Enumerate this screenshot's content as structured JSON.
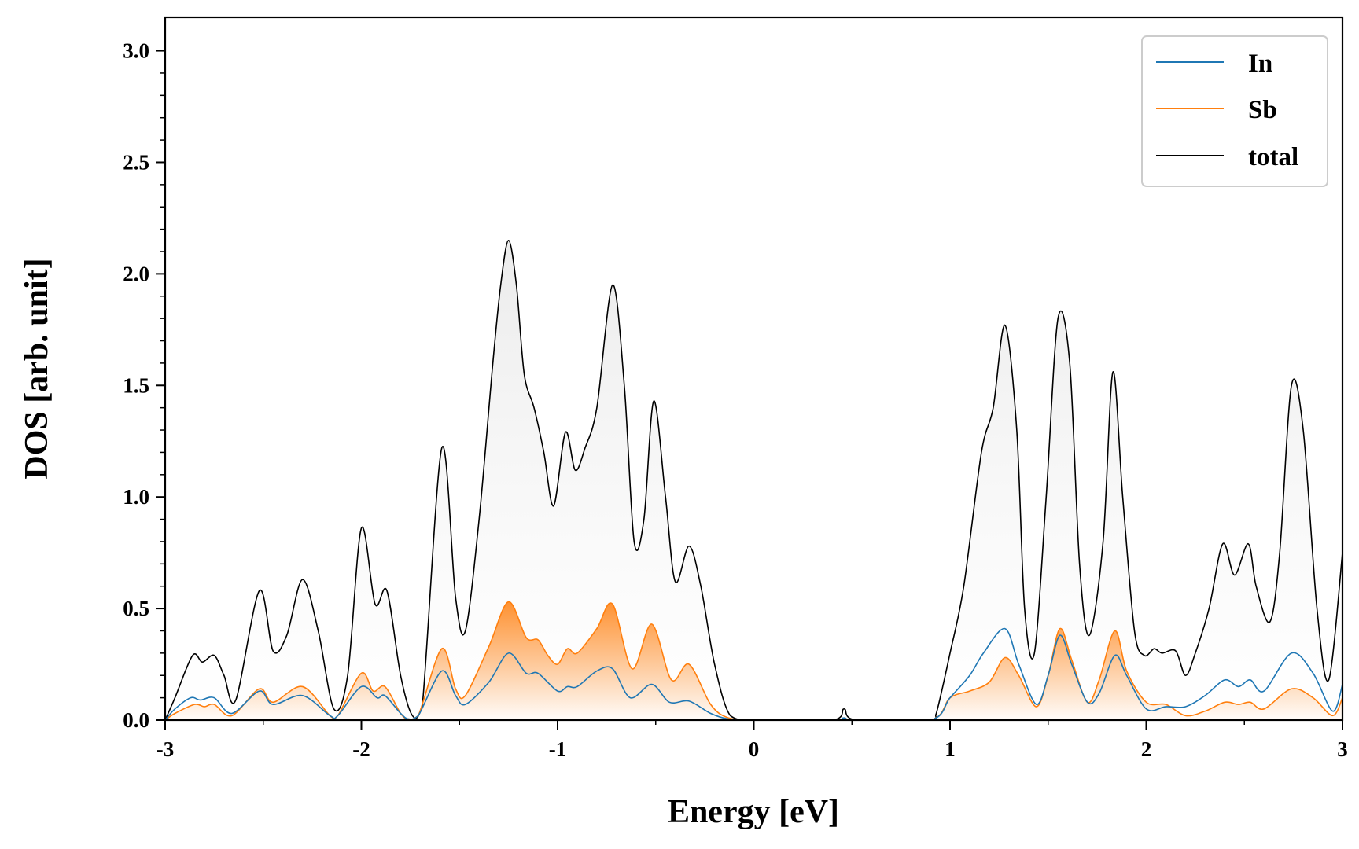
{
  "chart_data": {
    "type": "line",
    "title": "",
    "xlabel": "Energy [eV]",
    "ylabel": "DOS [arb. unit]",
    "xlim": [
      -3,
      3
    ],
    "ylim": [
      0,
      3.15
    ],
    "xticks": [
      -3,
      -2,
      -1,
      0,
      1,
      2,
      3
    ],
    "xtick_labels": [
      "-3",
      "-2",
      "-1",
      "0",
      "1",
      "2",
      "3"
    ],
    "yticks": [
      0.0,
      0.5,
      1.0,
      1.5,
      2.0,
      2.5,
      3.0
    ],
    "ytick_labels": [
      "0.0",
      "0.5",
      "1.0",
      "1.5",
      "2.0",
      "2.5",
      "3.0"
    ],
    "legend_position": "top-right",
    "grid": false,
    "series": [
      {
        "name": "In",
        "color": "#1f77b4",
        "filled": false,
        "x": [
          -3.0,
          -2.95,
          -2.87,
          -2.82,
          -2.75,
          -2.66,
          -2.52,
          -2.45,
          -2.3,
          -2.16,
          -2.12,
          -2.0,
          -1.92,
          -1.88,
          -1.8,
          -1.76,
          -1.71,
          -1.59,
          -1.52,
          -1.47,
          -1.35,
          -1.25,
          -1.16,
          -1.1,
          -1.0,
          -0.95,
          -0.9,
          -0.8,
          -0.72,
          -0.63,
          -0.52,
          -0.43,
          -0.33,
          -0.22,
          -0.13,
          0.0,
          0.4,
          0.46,
          0.52,
          0.9,
          1.0,
          1.1,
          1.17,
          1.28,
          1.35,
          1.44,
          1.5,
          1.56,
          1.62,
          1.7,
          1.76,
          1.84,
          1.9,
          2.0,
          2.1,
          2.2,
          2.3,
          2.4,
          2.47,
          2.53,
          2.6,
          2.74,
          2.85,
          2.95,
          3.0
        ],
        "y": [
          0.0,
          0.05,
          0.1,
          0.09,
          0.1,
          0.03,
          0.13,
          0.07,
          0.11,
          0.02,
          0.02,
          0.15,
          0.1,
          0.11,
          0.03,
          0.005,
          0.02,
          0.22,
          0.11,
          0.07,
          0.17,
          0.3,
          0.21,
          0.21,
          0.13,
          0.15,
          0.15,
          0.22,
          0.23,
          0.1,
          0.16,
          0.08,
          0.085,
          0.03,
          0.005,
          0.0,
          0.0,
          0.01,
          0.0,
          0.0,
          0.1,
          0.2,
          0.3,
          0.41,
          0.25,
          0.07,
          0.2,
          0.38,
          0.25,
          0.08,
          0.12,
          0.29,
          0.2,
          0.05,
          0.06,
          0.06,
          0.11,
          0.18,
          0.15,
          0.18,
          0.13,
          0.3,
          0.21,
          0.04,
          0.16
        ]
      },
      {
        "name": "Sb",
        "color": "#ff7f0e",
        "filled": true,
        "x": [
          -3.0,
          -2.95,
          -2.85,
          -2.8,
          -2.75,
          -2.66,
          -2.52,
          -2.45,
          -2.3,
          -2.16,
          -2.12,
          -2.0,
          -1.94,
          -1.88,
          -1.8,
          -1.76,
          -1.71,
          -1.59,
          -1.52,
          -1.47,
          -1.35,
          -1.25,
          -1.16,
          -1.1,
          -1.05,
          -1.0,
          -0.95,
          -0.9,
          -0.8,
          -0.72,
          -0.62,
          -0.52,
          -0.42,
          -0.33,
          -0.22,
          -0.13,
          0.0,
          0.4,
          0.46,
          0.52,
          0.9,
          1.0,
          1.1,
          1.2,
          1.28,
          1.35,
          1.44,
          1.5,
          1.56,
          1.62,
          1.7,
          1.76,
          1.84,
          1.9,
          2.0,
          2.1,
          2.2,
          2.3,
          2.4,
          2.47,
          2.53,
          2.6,
          2.74,
          2.85,
          2.95,
          3.0
        ],
        "y": [
          0.0,
          0.03,
          0.07,
          0.06,
          0.07,
          0.02,
          0.14,
          0.08,
          0.15,
          0.02,
          0.02,
          0.21,
          0.13,
          0.15,
          0.03,
          0.005,
          0.02,
          0.32,
          0.14,
          0.11,
          0.33,
          0.53,
          0.37,
          0.36,
          0.29,
          0.25,
          0.32,
          0.3,
          0.41,
          0.52,
          0.23,
          0.43,
          0.18,
          0.25,
          0.07,
          0.01,
          0.0,
          0.0,
          0.01,
          0.0,
          0.0,
          0.1,
          0.13,
          0.17,
          0.28,
          0.2,
          0.06,
          0.2,
          0.41,
          0.27,
          0.08,
          0.18,
          0.4,
          0.22,
          0.08,
          0.07,
          0.02,
          0.04,
          0.08,
          0.07,
          0.08,
          0.05,
          0.14,
          0.1,
          0.02,
          0.1
        ]
      },
      {
        "name": "total",
        "color": "#000000",
        "filled": true,
        "x": [
          -3.0,
          -2.95,
          -2.86,
          -2.81,
          -2.75,
          -2.7,
          -2.64,
          -2.52,
          -2.45,
          -2.38,
          -2.3,
          -2.22,
          -2.14,
          -2.07,
          -2.0,
          -1.93,
          -1.87,
          -1.8,
          -1.74,
          -1.69,
          -1.59,
          -1.52,
          -1.47,
          -1.4,
          -1.33,
          -1.29,
          -1.25,
          -1.21,
          -1.17,
          -1.12,
          -1.07,
          -1.02,
          -0.96,
          -0.91,
          -0.86,
          -0.8,
          -0.72,
          -0.66,
          -0.61,
          -0.56,
          -0.51,
          -0.45,
          -0.4,
          -0.33,
          -0.27,
          -0.2,
          -0.12,
          0.0,
          0.4,
          0.46,
          0.52,
          0.9,
          0.93,
          1.0,
          1.07,
          1.16,
          1.22,
          1.28,
          1.34,
          1.38,
          1.43,
          1.49,
          1.55,
          1.61,
          1.66,
          1.71,
          1.78,
          1.83,
          1.88,
          1.94,
          1.99,
          2.04,
          2.08,
          2.15,
          2.2,
          2.25,
          2.32,
          2.39,
          2.45,
          2.52,
          2.56,
          2.63,
          2.68,
          2.74,
          2.8,
          2.87,
          2.93,
          3.0
        ],
        "y": [
          0.0,
          0.1,
          0.29,
          0.26,
          0.29,
          0.2,
          0.09,
          0.58,
          0.31,
          0.38,
          0.63,
          0.4,
          0.05,
          0.2,
          0.86,
          0.52,
          0.58,
          0.2,
          0.02,
          0.06,
          1.22,
          0.55,
          0.4,
          0.9,
          1.6,
          1.95,
          2.15,
          1.95,
          1.55,
          1.4,
          1.2,
          0.96,
          1.29,
          1.12,
          1.22,
          1.4,
          1.95,
          1.5,
          0.8,
          0.9,
          1.43,
          1.0,
          0.62,
          0.78,
          0.6,
          0.25,
          0.02,
          0.0,
          0.0,
          0.05,
          0.0,
          0.0,
          0.03,
          0.3,
          0.6,
          1.2,
          1.4,
          1.77,
          1.3,
          0.5,
          0.3,
          1.0,
          1.8,
          1.6,
          0.7,
          0.38,
          0.8,
          1.56,
          1.0,
          0.4,
          0.29,
          0.32,
          0.3,
          0.31,
          0.2,
          0.3,
          0.5,
          0.79,
          0.65,
          0.79,
          0.6,
          0.44,
          0.75,
          1.5,
          1.3,
          0.5,
          0.18,
          0.75
        ]
      }
    ]
  }
}
